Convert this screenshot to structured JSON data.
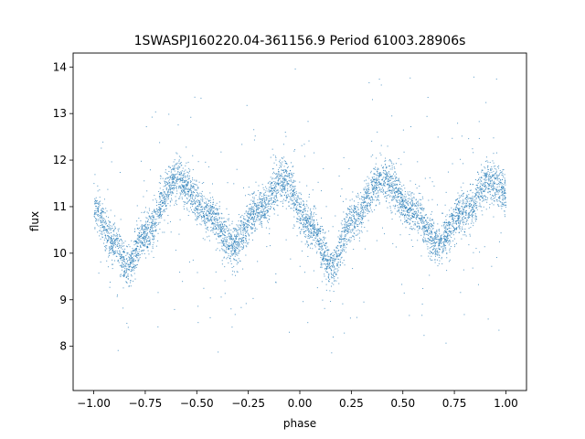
{
  "chart_data": {
    "type": "scatter",
    "title": "1SWASPJ160220.04-361156.9 Period 61003.28906s",
    "xlabel": "phase",
    "ylabel": "flux",
    "xlim": [
      -1.1,
      1.1
    ],
    "ylim": [
      7.05,
      14.3
    ],
    "xticks": [
      -1.0,
      -0.75,
      -0.5,
      -0.25,
      0.0,
      0.25,
      0.5,
      0.75,
      1.0
    ],
    "xtick_labels": [
      "−1.00",
      "−0.75",
      "−0.50",
      "−0.25",
      "0.00",
      "0.25",
      "0.50",
      "0.75",
      "1.00"
    ],
    "yticks": [
      8,
      9,
      10,
      11,
      12,
      13,
      14
    ],
    "ytick_labels": [
      "8",
      "9",
      "10",
      "11",
      "12",
      "13",
      "14"
    ],
    "grid": false,
    "marker_color": "#1f77b4",
    "series_profile": {
      "phase": [
        -1.0,
        -0.9,
        -0.84,
        -0.75,
        -0.6,
        -0.45,
        -0.33,
        -0.2,
        -0.08,
        0.05,
        0.16,
        0.25,
        0.4,
        0.55,
        0.67,
        0.8,
        0.92,
        1.0
      ],
      "flux": [
        11.0,
        10.2,
        9.7,
        10.4,
        11.6,
        10.9,
        10.2,
        10.9,
        11.6,
        10.6,
        9.7,
        10.7,
        11.6,
        10.9,
        10.2,
        10.9,
        11.5,
        11.3
      ],
      "scatter": 0.22
    }
  }
}
